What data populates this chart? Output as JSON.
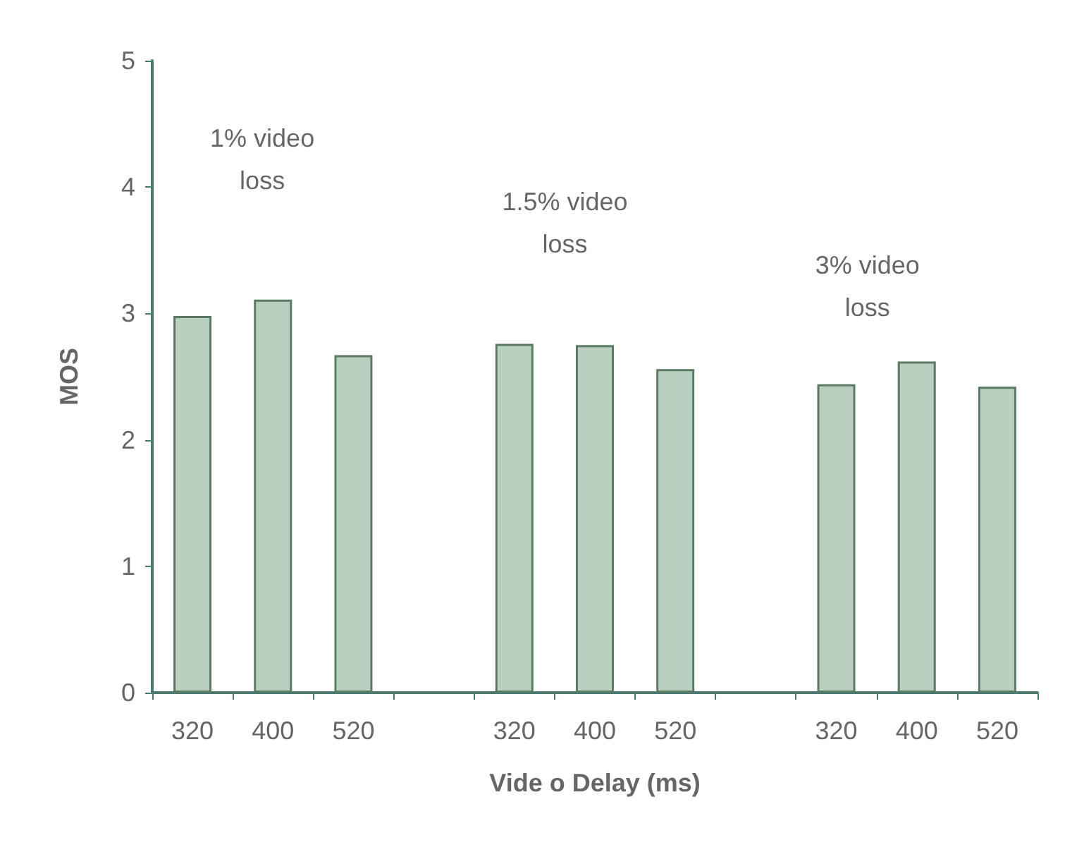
{
  "chart_data": {
    "type": "bar",
    "xlabel": "Vide o Delay (ms)",
    "ylabel": "MOS",
    "categories": [
      "320",
      "400",
      "520",
      null,
      "320",
      "400",
      "520",
      null,
      "320",
      "400",
      "520"
    ],
    "values": [
      2.98,
      3.11,
      2.67,
      null,
      2.76,
      2.75,
      2.56,
      null,
      2.44,
      2.62,
      2.42
    ],
    "color": "#b9d0c0",
    "ylim": [
      0,
      5
    ],
    "yticks": [
      0,
      1,
      2,
      3,
      4,
      5
    ],
    "grid": false,
    "annotations": [
      "1% video\nloss",
      "1.5% video\nloss",
      "3% video\nloss"
    ]
  }
}
